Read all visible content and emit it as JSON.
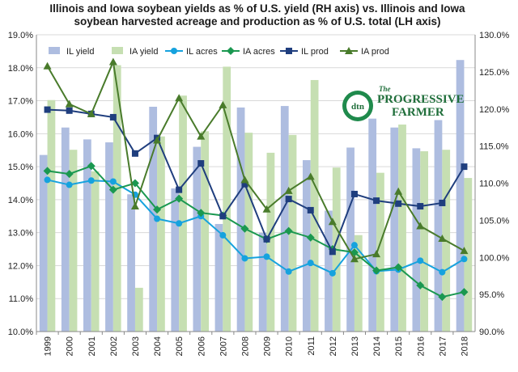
{
  "chart_data": {
    "type": "bar",
    "title_lines": [
      "Illinois and Iowa soybean yields as % of U.S. yield (RH axis) vs. Illinois and Iowa",
      "soybean harvested acreage and production as % of U.S. total (LH axis)"
    ],
    "categories": [
      "1999",
      "2000",
      "2001",
      "2002",
      "2003",
      "2004",
      "2005",
      "2006",
      "2007",
      "2008",
      "2009",
      "2010",
      "2011",
      "2012",
      "2013",
      "2014",
      "2015",
      "2016",
      "2017",
      "2018"
    ],
    "left_axis": {
      "min": 10,
      "max": 19,
      "step": 1,
      "ticks": [
        "10.0%",
        "11.0%",
        "12.0%",
        "13.0%",
        "14.0%",
        "15.0%",
        "16.0%",
        "17.0%",
        "18.0%",
        "19.0%"
      ]
    },
    "right_axis": {
      "min": 90,
      "max": 130,
      "step": 5,
      "ticks": [
        "90.0%",
        "95.0%",
        "100.0%",
        "105.0%",
        "110.0%",
        "115.0%",
        "120.0%",
        "125.0%",
        "130.0%"
      ]
    },
    "bar_series": [
      {
        "name": "IL yield",
        "axis": "right",
        "color": "#aebde0",
        "values": [
          113.8,
          117.5,
          115.9,
          115.5,
          108.5,
          120.3,
          109.3,
          114.9,
          104.5,
          120.2,
          103.3,
          120.4,
          113.1,
          106.3,
          114.8,
          118.7,
          117.5,
          114.7,
          118.5,
          126.6
        ]
      },
      {
        "name": "IA yield",
        "axis": "right",
        "color": "#c6dfb2",
        "values": [
          121.2,
          114.5,
          111.6,
          125.9,
          95.9,
          116.3,
          121.8,
          117.0,
          125.7,
          116.8,
          114.1,
          116.5,
          123.9,
          112.1,
          103.0,
          111.4,
          117.9,
          114.3,
          114.5,
          110.7
        ]
      }
    ],
    "line_series": [
      {
        "name": "IL acres",
        "axis": "left",
        "color": "#16a2de",
        "marker": "circle",
        "values": [
          14.6,
          14.45,
          14.58,
          14.55,
          14.15,
          13.42,
          13.28,
          13.5,
          12.92,
          12.22,
          12.27,
          11.82,
          12.08,
          11.77,
          12.62,
          11.83,
          11.88,
          12.15,
          11.8,
          12.2
        ]
      },
      {
        "name": "IA acres",
        "axis": "left",
        "color": "#1a9850",
        "marker": "diamond",
        "values": [
          14.87,
          14.78,
          15.02,
          14.3,
          14.5,
          13.7,
          14.03,
          13.6,
          13.52,
          13.12,
          12.8,
          13.05,
          12.85,
          12.5,
          12.4,
          11.85,
          11.95,
          11.4,
          11.05,
          11.2
        ]
      },
      {
        "name": "IL prod",
        "axis": "left",
        "color": "#1f3e7e",
        "marker": "square",
        "values": [
          16.73,
          16.7,
          16.6,
          16.5,
          15.4,
          15.87,
          14.3,
          15.1,
          13.5,
          14.47,
          12.8,
          14.02,
          13.68,
          12.42,
          14.17,
          13.97,
          13.88,
          13.8,
          13.9,
          15.0
        ]
      },
      {
        "name": "IA prod",
        "axis": "left",
        "color": "#497b2b",
        "marker": "triangle",
        "values": [
          18.05,
          16.9,
          16.6,
          18.18,
          13.8,
          15.8,
          17.08,
          15.92,
          16.87,
          14.6,
          13.71,
          14.27,
          14.7,
          13.33,
          12.2,
          12.35,
          14.25,
          13.2,
          12.82,
          12.45
        ]
      }
    ],
    "legend_position": "top-left",
    "grid": {
      "horizontal": true,
      "vertical": false
    }
  },
  "logo": {
    "badge_text": "dtn",
    "name": "PROGRESSIVE FARMER",
    "prefix": "The"
  }
}
